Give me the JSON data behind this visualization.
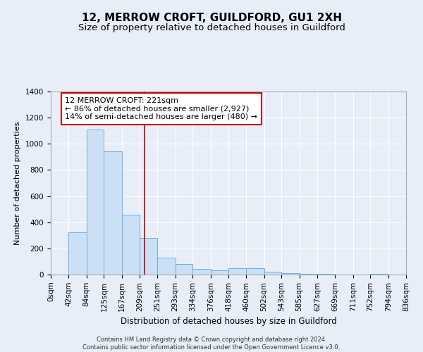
{
  "title": "12, MERROW CROFT, GUILDFORD, GU1 2XH",
  "subtitle": "Size of property relative to detached houses in Guildford",
  "xlabel": "Distribution of detached houses by size in Guildford",
  "ylabel": "Number of detached properties",
  "footer_line1": "Contains HM Land Registry data © Crown copyright and database right 2024.",
  "footer_line2": "Contains public sector information licensed under the Open Government Licence v3.0.",
  "bar_labels": [
    "0sqm",
    "42sqm",
    "84sqm",
    "125sqm",
    "167sqm",
    "209sqm",
    "251sqm",
    "293sqm",
    "334sqm",
    "376sqm",
    "418sqm",
    "460sqm",
    "502sqm",
    "543sqm",
    "585sqm",
    "627sqm",
    "669sqm",
    "711sqm",
    "752sqm",
    "794sqm",
    "836sqm"
  ],
  "bar_values": [
    0,
    325,
    1110,
    940,
    460,
    280,
    130,
    80,
    45,
    35,
    50,
    50,
    20,
    10,
    5,
    5,
    0,
    0,
    5,
    0,
    0
  ],
  "bar_color": "#cce0f5",
  "bar_edge_color": "#6aaee0",
  "annotation_box_text": "12 MERROW CROFT: 221sqm\n← 86% of detached houses are smaller (2,927)\n14% of semi-detached houses are larger (480) →",
  "vline_x": 221,
  "vline_color": "#cc0000",
  "ylim": [
    0,
    1400
  ],
  "yticks": [
    0,
    200,
    400,
    600,
    800,
    1000,
    1200,
    1400
  ],
  "bg_color": "#e8eef8",
  "plot_bg_color": "#e8eef8",
  "grid_color": "#ffffff",
  "title_fontsize": 11,
  "subtitle_fontsize": 9.5,
  "annotation_fontsize": 8,
  "axis_label_fontsize": 8.5,
  "tick_fontsize": 7.5,
  "footer_fontsize": 6,
  "ylabel_fontsize": 8
}
